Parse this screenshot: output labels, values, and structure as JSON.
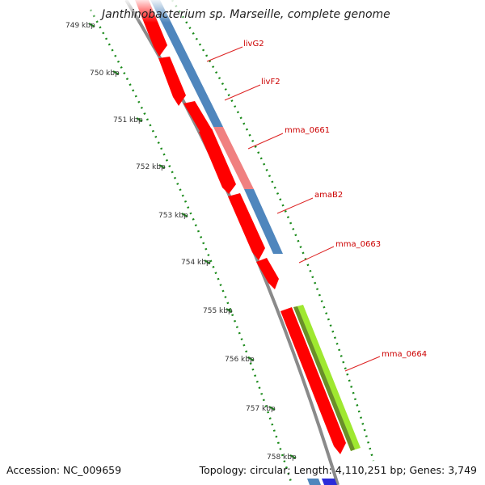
{
  "title": "Janthinobacterium sp. Marseille, complete genome",
  "scale_unit": "kbp",
  "scale_ticks": [
    749,
    750,
    751,
    752,
    753,
    754,
    755,
    756,
    757,
    758
  ],
  "genes": [
    {
      "label": "livG2",
      "color": "#ff0000",
      "strand": "+"
    },
    {
      "label": "livF2",
      "color": "#ff0000",
      "strand": "+"
    },
    {
      "label": "mma_0661",
      "color": "#ff0000",
      "strand": "+"
    },
    {
      "label": "amaB2",
      "color": "#ff0000",
      "strand": "+"
    },
    {
      "label": "mma_0663",
      "color": "#ff0000",
      "strand": "+"
    },
    {
      "label": "mma_0664",
      "color": "#ff0000",
      "strand": "+"
    }
  ],
  "feature_track_colors": [
    "#4f86bd",
    "#f08080",
    "#9fe830",
    "#2b2bd9"
  ],
  "accession_label": "Accession:",
  "accession": "NC_009659",
  "topology_label": "Topology:",
  "topology": "circular",
  "length_label": "Length:",
  "length": "4,110,251 bp",
  "genes_label": "Genes:",
  "gene_count": "3,749"
}
